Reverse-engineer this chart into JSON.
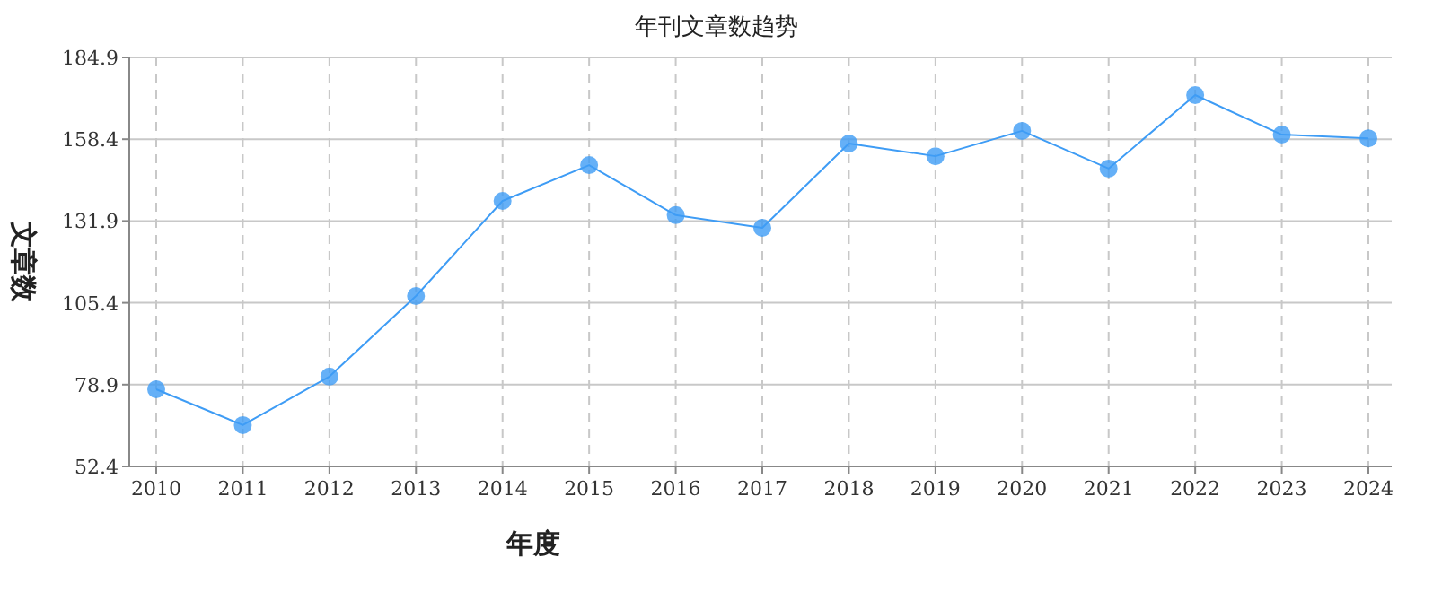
{
  "chart_data": {
    "type": "line",
    "title": "年刊文章数趋势",
    "xlabel": "年度",
    "ylabel": "文章数",
    "categories": [
      "2010",
      "2011",
      "2012",
      "2013",
      "2014",
      "2015",
      "2016",
      "2017",
      "2018",
      "2019",
      "2020",
      "2021",
      "2022",
      "2023",
      "2024"
    ],
    "series": [
      {
        "color": "#3e9cf5",
        "values": [
          77.4,
          65.8,
          81.5,
          107.6,
          138.4,
          150.0,
          133.8,
          129.7,
          157.0,
          152.9,
          161.1,
          148.9,
          172.7,
          159.9,
          158.7
        ]
      }
    ],
    "ylim": [
      52.4,
      184.9
    ],
    "yticks": [
      52.4,
      78.9,
      105.4,
      131.9,
      158.4,
      184.9
    ],
    "grid": true,
    "marker": "circle"
  }
}
